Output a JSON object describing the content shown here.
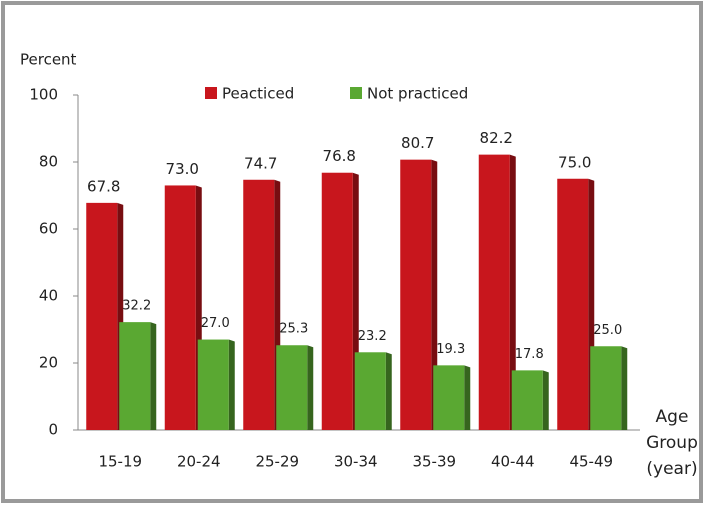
{
  "chart_data": {
    "type": "bar",
    "ylabel": "Percent",
    "xlabel": "Age Group (year)",
    "categories": [
      "15-19",
      "20-24",
      "25-29",
      "30-34",
      "35-39",
      "40-44",
      "45-49"
    ],
    "series": [
      {
        "name": "Peacticed",
        "color": "#c8161d",
        "values": [
          67.8,
          73,
          74.7,
          76.8,
          80.7,
          82.2,
          75
        ],
        "value_labels": [
          "67.8",
          "73.0",
          "74.7",
          "76.8",
          "80.7",
          "82.2",
          "75.0"
        ]
      },
      {
        "name": "Not practiced",
        "color": "#5aa832",
        "values": [
          32.2,
          27,
          25.3,
          23.2,
          19.3,
          17.8,
          25
        ],
        "value_labels": [
          "32.2",
          "27.0",
          "25.3",
          "23.2",
          "19.3",
          "17.8",
          "25.0"
        ]
      }
    ],
    "ylim": [
      0,
      100
    ],
    "yticks": [
      0,
      20,
      40,
      60,
      80,
      100
    ],
    "grid": false
  }
}
